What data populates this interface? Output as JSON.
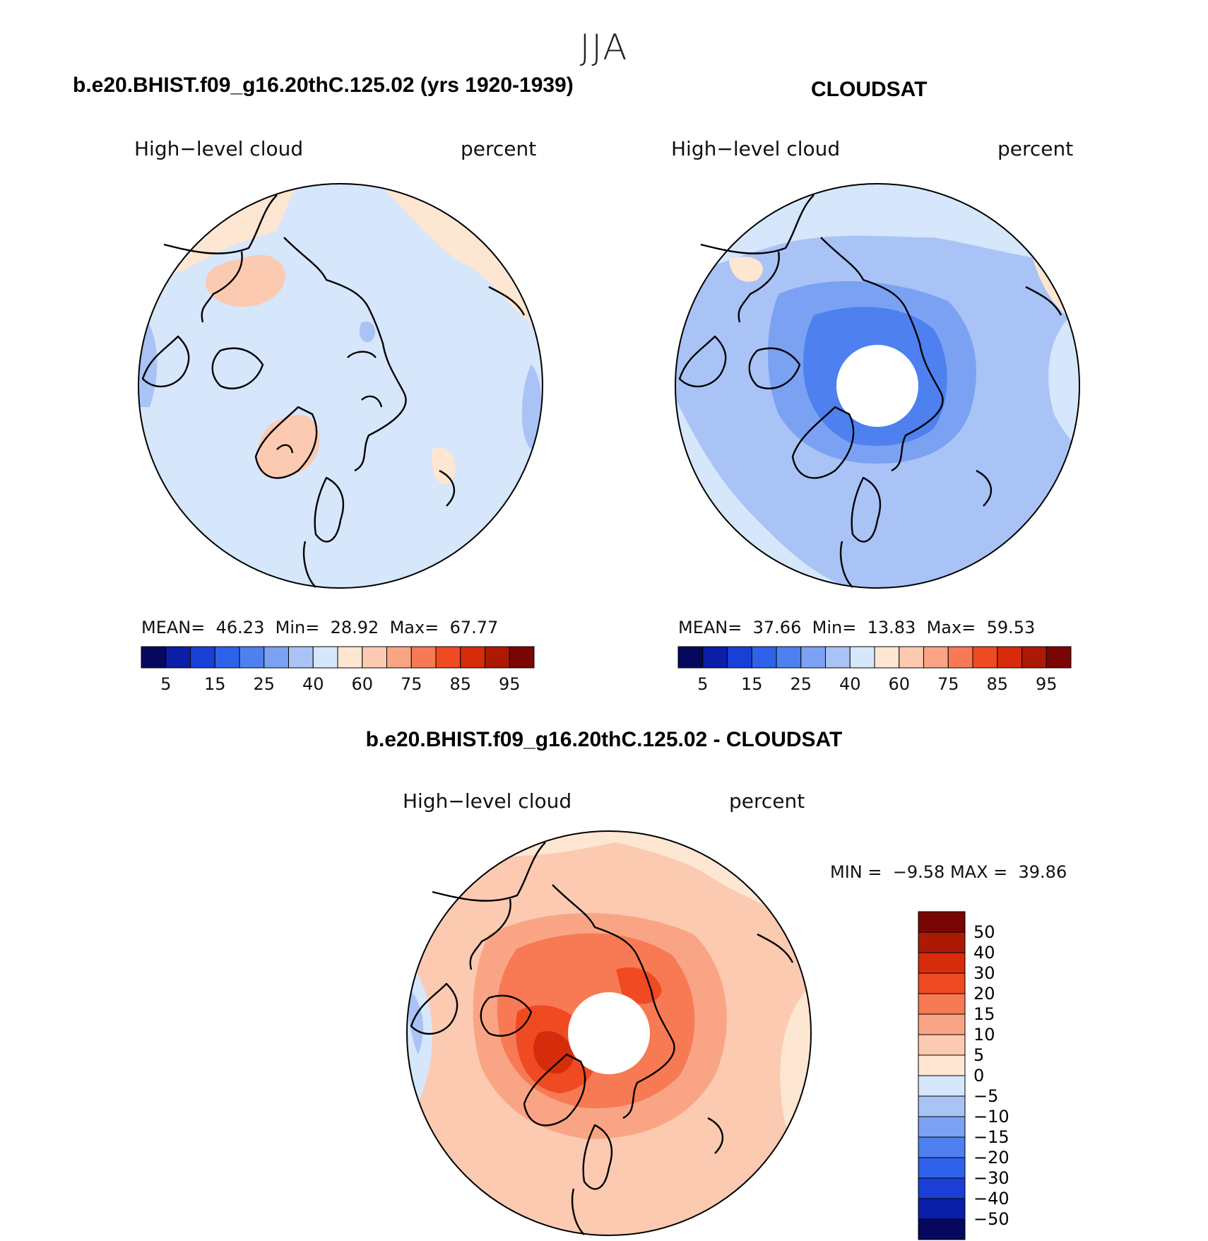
{
  "season": "JJA",
  "panels": [
    {
      "title": "b.e20.BHIST.f09_g16.20thC.125.02 (yrs 1920-1939)",
      "variable": "High−level cloud",
      "units": "percent",
      "stats": {
        "mean": "46.23",
        "min": "28.92",
        "max": "67.77"
      },
      "colorbar": {
        "colors": [
          "#06085e",
          "#0a1ea8",
          "#1a3fd6",
          "#2e62ea",
          "#4e80ef",
          "#7ba1f2",
          "#a9c3f6",
          "#d6e6fb",
          "#fde6d2",
          "#fccab0",
          "#f9a585",
          "#f77a55",
          "#ef4a22",
          "#d62c0c",
          "#ac1a05",
          "#7a0603"
        ],
        "labels": [
          "5",
          "15",
          "25",
          "40",
          "60",
          "75",
          "85",
          "95"
        ]
      }
    },
    {
      "title": "CLOUDSAT",
      "variable": "High−level cloud",
      "units": "percent",
      "stats": {
        "mean": "37.66",
        "min": "13.83",
        "max": "59.53"
      },
      "colorbar": {
        "colors": [
          "#06085e",
          "#0a1ea8",
          "#1a3fd6",
          "#2e62ea",
          "#4e80ef",
          "#7ba1f2",
          "#a9c3f6",
          "#d6e6fb",
          "#fde6d2",
          "#fccab0",
          "#f9a585",
          "#f77a55",
          "#ef4a22",
          "#d62c0c",
          "#ac1a05",
          "#7a0603"
        ],
        "labels": [
          "5",
          "15",
          "25",
          "40",
          "60",
          "75",
          "85",
          "95"
        ]
      }
    },
    {
      "title": "b.e20.BHIST.f09_g16.20thC.125.02 - CLOUDSAT",
      "variable": "High−level cloud",
      "units": "percent",
      "stats": {
        "min_label": "MIN =",
        "min": "−9.58",
        "max_label": "MAX =",
        "max": "39.86"
      },
      "colorbar": {
        "colors": [
          "#7a0603",
          "#ac1a05",
          "#d62c0c",
          "#ef4a22",
          "#f77a55",
          "#f9a585",
          "#fccab0",
          "#fde6d2",
          "#d6e6fb",
          "#a9c3f6",
          "#7ba1f2",
          "#4e80ef",
          "#2e62ea",
          "#1a3fd6",
          "#0a1ea8",
          "#06085e"
        ],
        "labels": [
          "50",
          "40",
          "30",
          "20",
          "15",
          "10",
          "5",
          "0",
          "−5",
          "−10",
          "−15",
          "−20",
          "−30",
          "−40",
          "−50"
        ]
      }
    }
  ],
  "map_colors": {
    "model_base": "#d6e6fb",
    "model_warm": "#fde6d2",
    "model_warm2": "#fccab0",
    "model_cool": "#a9c3f6",
    "obs_base": "#a9c3f6",
    "obs_light": "#d6e6fb",
    "obs_mid": "#7ba1f2",
    "obs_dark": "#4e80ef",
    "obs_warm": "#fde6d2",
    "diff_base": "#fccab0",
    "diff_light": "#fde6d2",
    "diff_mid": "#f9a585",
    "diff_hot": "#f77a55",
    "diff_hotter": "#ef4a22",
    "diff_max": "#d62c0c",
    "diff_cool": "#d6e6fb",
    "diff_cool2": "#a9c3f6"
  }
}
